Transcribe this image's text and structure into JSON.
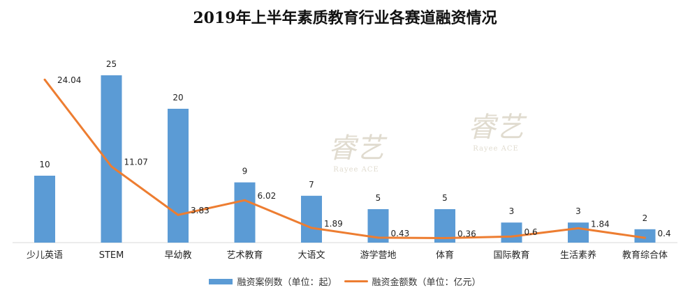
{
  "chart_data": {
    "type": "bar+line",
    "title": "2019年上半年素质教育行业各赛道融资情况",
    "categories": [
      "少儿英语",
      "STEM",
      "早幼教",
      "艺术教育",
      "大语文",
      "游学营地",
      "体育",
      "国际教育",
      "生活素养",
      "教育综合体"
    ],
    "series": [
      {
        "name": "融资案例数（单位：起）",
        "type": "bar",
        "color": "#5B9BD5",
        "values": [
          10,
          25,
          20,
          9,
          7,
          5,
          5,
          3,
          3,
          2
        ],
        "labels": [
          "10",
          "25",
          "20",
          "9",
          "7",
          "5",
          "5",
          "3",
          "3",
          "2"
        ]
      },
      {
        "name": "融资金额数（单位：亿元）",
        "type": "line",
        "color": "#ED7D31",
        "values": [
          24.04,
          11.07,
          3.83,
          6.02,
          1.89,
          0.43,
          0.36,
          0.6,
          1.84,
          0.4
        ],
        "labels": [
          "24.04",
          "11.07",
          "3.83",
          "6.02",
          "1.89",
          "0.43",
          "0.36",
          "0.6",
          "1.84",
          "0.4"
        ]
      }
    ],
    "ylim": [
      0,
      25
    ],
    "grid": false,
    "legend_position": "bottom"
  },
  "watermark": {
    "logo_cn": "睿艺",
    "logo_en": "Rayee ACE"
  }
}
